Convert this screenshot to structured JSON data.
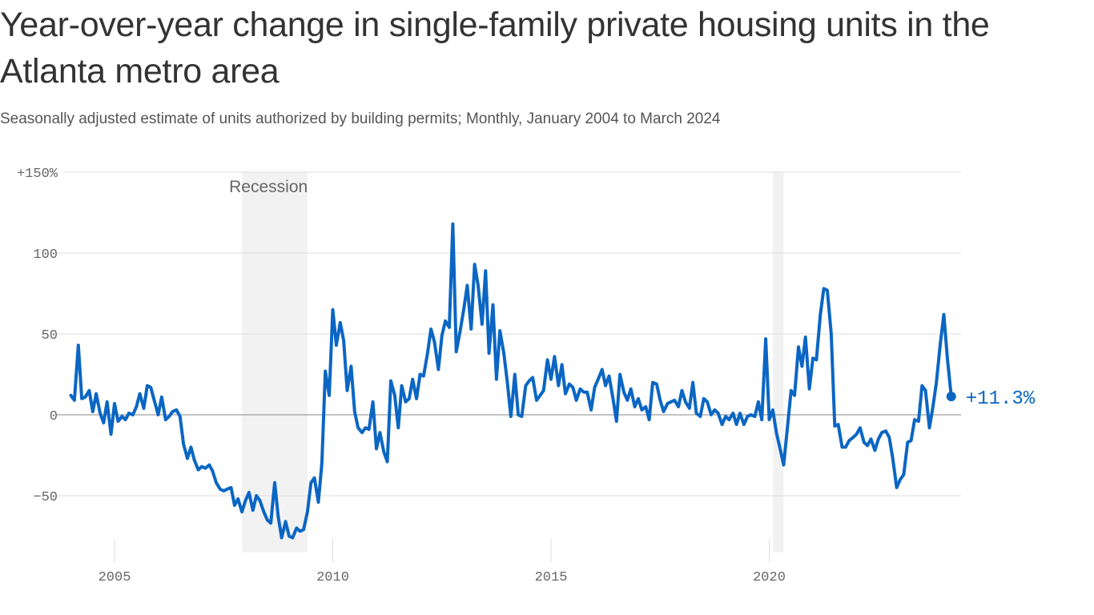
{
  "title": "Year-over-year change in single-family private housing units in the Atlanta metro area",
  "subtitle": "Seasonally adjusted estimate of units authorized by building permits; Monthly, January 2004 to March 2024",
  "colors": {
    "line": "#0b66c3",
    "recession": "#f2f2f2",
    "grid": "#dddddd",
    "zero": "#888888"
  },
  "chart_data": {
    "type": "line",
    "title": "Year-over-year change in single-family private housing units in the Atlanta metro area",
    "ylim": [
      -80,
      150
    ],
    "xlim": [
      2004,
      2024.25
    ],
    "grid": true,
    "y_ticks": [
      {
        "value": 150,
        "label": "+150%"
      },
      {
        "value": 100,
        "label": "100"
      },
      {
        "value": 50,
        "label": "50"
      },
      {
        "value": 0,
        "label": "0"
      },
      {
        "value": -50,
        "label": "−50"
      }
    ],
    "x_ticks": [
      {
        "value": 2005,
        "label": "2005"
      },
      {
        "value": 2010,
        "label": "2010"
      },
      {
        "value": 2015,
        "label": "2015"
      },
      {
        "value": 2020,
        "label": "2020"
      }
    ],
    "shaded_periods": [
      {
        "start": 2007.92,
        "end": 2009.42,
        "label": "Recession"
      },
      {
        "start": 2020.08,
        "end": 2020.33,
        "label": ""
      }
    ],
    "end_label": "+11.3%",
    "x": [
      2004.0,
      2004.08,
      2004.17,
      2004.25,
      2004.33,
      2004.42,
      2004.5,
      2004.58,
      2004.67,
      2004.75,
      2004.83,
      2004.92,
      2005.0,
      2005.08,
      2005.17,
      2005.25,
      2005.33,
      2005.42,
      2005.5,
      2005.58,
      2005.67,
      2005.75,
      2005.83,
      2005.92,
      2006.0,
      2006.08,
      2006.17,
      2006.25,
      2006.33,
      2006.42,
      2006.5,
      2006.58,
      2006.67,
      2006.75,
      2006.83,
      2006.92,
      2007.0,
      2007.08,
      2007.17,
      2007.25,
      2007.33,
      2007.42,
      2007.5,
      2007.58,
      2007.67,
      2007.75,
      2007.83,
      2007.92,
      2008.0,
      2008.08,
      2008.17,
      2008.25,
      2008.33,
      2008.42,
      2008.5,
      2008.58,
      2008.67,
      2008.75,
      2008.83,
      2008.92,
      2009.0,
      2009.08,
      2009.17,
      2009.25,
      2009.33,
      2009.42,
      2009.5,
      2009.58,
      2009.67,
      2009.75,
      2009.83,
      2009.92,
      2010.0,
      2010.08,
      2010.17,
      2010.25,
      2010.33,
      2010.42,
      2010.5,
      2010.58,
      2010.67,
      2010.75,
      2010.83,
      2010.92,
      2011.0,
      2011.08,
      2011.17,
      2011.25,
      2011.33,
      2011.42,
      2011.5,
      2011.58,
      2011.67,
      2011.75,
      2011.83,
      2011.92,
      2012.0,
      2012.08,
      2012.17,
      2012.25,
      2012.33,
      2012.42,
      2012.5,
      2012.58,
      2012.67,
      2012.75,
      2012.83,
      2012.92,
      2013.0,
      2013.08,
      2013.17,
      2013.25,
      2013.33,
      2013.42,
      2013.5,
      2013.58,
      2013.67,
      2013.75,
      2013.83,
      2013.92,
      2014.0,
      2014.08,
      2014.17,
      2014.25,
      2014.33,
      2014.42,
      2014.5,
      2014.58,
      2014.67,
      2014.75,
      2014.83,
      2014.92,
      2015.0,
      2015.08,
      2015.17,
      2015.25,
      2015.33,
      2015.42,
      2015.5,
      2015.58,
      2015.67,
      2015.75,
      2015.83,
      2015.92,
      2016.0,
      2016.08,
      2016.17,
      2016.25,
      2016.33,
      2016.42,
      2016.5,
      2016.58,
      2016.67,
      2016.75,
      2016.83,
      2016.92,
      2017.0,
      2017.08,
      2017.17,
      2017.25,
      2017.33,
      2017.42,
      2017.5,
      2017.58,
      2017.67,
      2017.75,
      2017.83,
      2017.92,
      2018.0,
      2018.08,
      2018.17,
      2018.25,
      2018.33,
      2018.42,
      2018.5,
      2018.58,
      2018.67,
      2018.75,
      2018.83,
      2018.92,
      2019.0,
      2019.08,
      2019.17,
      2019.25,
      2019.33,
      2019.42,
      2019.5,
      2019.58,
      2019.67,
      2019.75,
      2019.83,
      2019.92,
      2020.0,
      2020.08,
      2020.17,
      2020.25,
      2020.33,
      2020.42,
      2020.5,
      2020.58,
      2020.67,
      2020.75,
      2020.83,
      2020.92,
      2021.0,
      2021.08,
      2021.17,
      2021.25,
      2021.33,
      2021.42,
      2021.5,
      2021.58,
      2021.67,
      2021.75,
      2021.83,
      2021.92,
      2022.0,
      2022.08,
      2022.17,
      2022.25,
      2022.33,
      2022.42,
      2022.5,
      2022.58,
      2022.67,
      2022.75,
      2022.83,
      2022.92,
      2023.0,
      2023.08,
      2023.17,
      2023.25,
      2023.33,
      2023.42,
      2023.5,
      2023.58,
      2023.67,
      2023.75,
      2023.83,
      2023.92,
      2024.0,
      2024.08,
      2024.17
    ],
    "series": [
      {
        "values": [
          12,
          9,
          43,
          10,
          11,
          15,
          2,
          13,
          1,
          -5,
          8,
          -12,
          7,
          -4,
          -1,
          -3,
          1,
          0,
          5,
          13,
          4,
          18,
          17,
          8,
          0,
          11,
          -3,
          -1,
          2,
          3,
          -1,
          -18,
          -27,
          -20,
          -28,
          -34,
          -32,
          -33,
          -31,
          -35,
          -42,
          -46,
          -47,
          -46,
          -45,
          -56,
          -52,
          -60,
          -53,
          -48,
          -59,
          -50,
          -53,
          -60,
          -65,
          -67,
          -42,
          -63,
          -76,
          -66,
          -75,
          -76,
          -70,
          -72,
          -71,
          -60,
          -42,
          -39,
          -54,
          -30,
          27,
          12,
          65,
          43,
          57,
          46,
          15,
          30,
          2,
          -8,
          -11,
          -8,
          -9,
          8,
          -21,
          -11,
          -23,
          -29,
          21,
          12,
          -8,
          18,
          8,
          10,
          22,
          10,
          25,
          24,
          38,
          53,
          45,
          28,
          49,
          58,
          54,
          118,
          39,
          52,
          65,
          80,
          53,
          93,
          80,
          56,
          89,
          38,
          68,
          22,
          52,
          38,
          20,
          -1,
          25,
          0,
          -1,
          18,
          21,
          23,
          9,
          12,
          15,
          34,
          22,
          36,
          18,
          31,
          13,
          19,
          17,
          9,
          16,
          14,
          14,
          3,
          17,
          22,
          28,
          18,
          24,
          10,
          -4,
          25,
          14,
          9,
          16,
          5,
          10,
          3,
          5,
          -3,
          20,
          19,
          9,
          2,
          7,
          8,
          9,
          5,
          15,
          8,
          4,
          20,
          1,
          -1,
          10,
          8,
          0,
          3,
          1,
          -6,
          -1,
          -3,
          1,
          -6,
          1,
          -6,
          -1,
          0,
          -1,
          8,
          -3,
          47,
          -3,
          3,
          -12,
          -21,
          -31,
          -7,
          15,
          12,
          42,
          30,
          48,
          16,
          35,
          34,
          62,
          78,
          77,
          50,
          -7,
          -6,
          -20,
          -20,
          -16,
          -14,
          -12,
          -8,
          -17,
          -19,
          -15,
          -22,
          -15,
          -11,
          -10,
          -14,
          -27,
          -45,
          -40,
          -37,
          -17,
          -16,
          -3,
          -4,
          18,
          15,
          -8,
          5,
          20,
          44,
          62,
          35,
          11.3
        ]
      }
    ]
  }
}
